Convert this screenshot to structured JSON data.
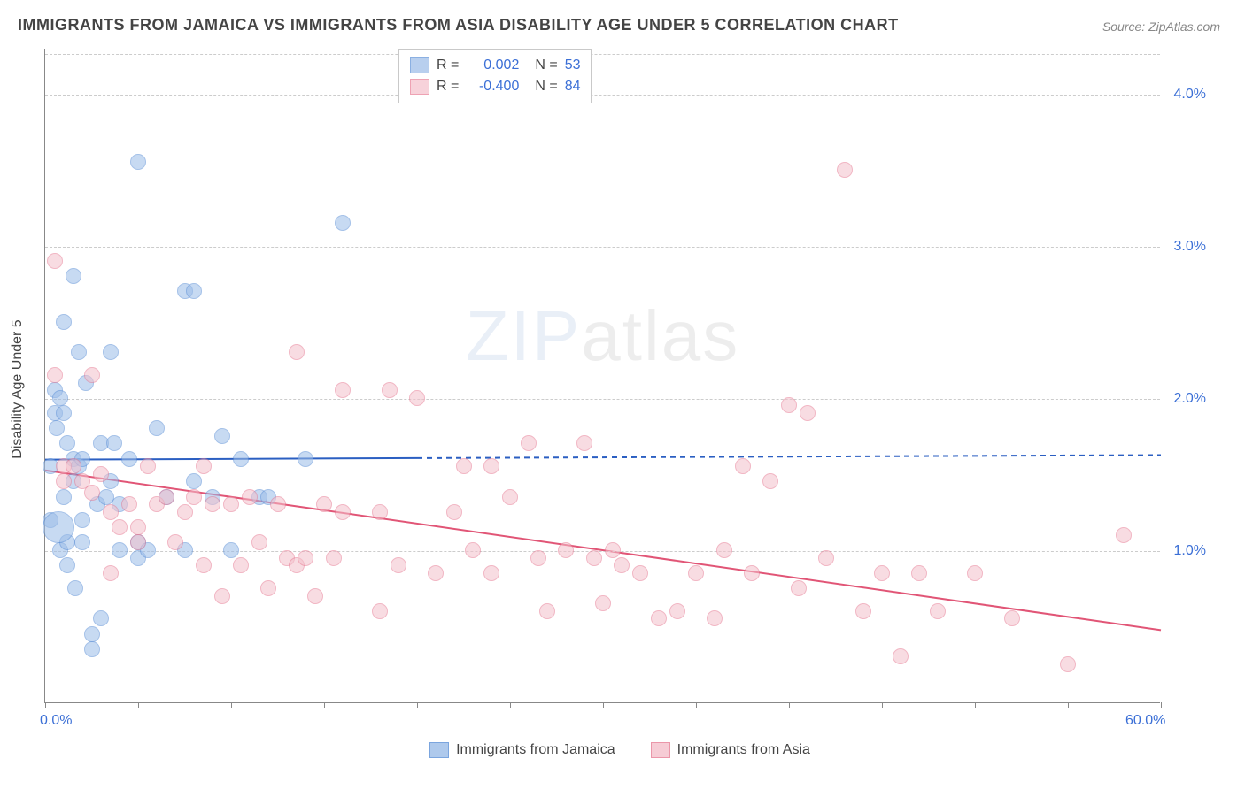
{
  "title": "IMMIGRANTS FROM JAMAICA VS IMMIGRANTS FROM ASIA DISABILITY AGE UNDER 5 CORRELATION CHART",
  "source": "Source: ZipAtlas.com",
  "chart": {
    "type": "scatter",
    "ylabel": "Disability Age Under 5",
    "xlim": [
      0,
      60
    ],
    "ylim": [
      0,
      4.3
    ],
    "xtick_positions": [
      0,
      5,
      10,
      15,
      20,
      25,
      30,
      35,
      40,
      45,
      50,
      55,
      60
    ],
    "xtick_labels": {
      "0": "0.0%",
      "60": "60.0%"
    },
    "ytick_positions": [
      1.0,
      2.0,
      3.0,
      4.0
    ],
    "ytick_labels": [
      "1.0%",
      "2.0%",
      "3.0%",
      "4.0%"
    ],
    "grid_color": "#d5d5d5",
    "background_color": "#ffffff",
    "point_radius": 9,
    "point_stroke_width": 1.5,
    "series": [
      {
        "name": "Immigrants from Jamaica",
        "fill": "#9bbce8",
        "stroke": "#5b8fd6",
        "fill_opacity": 0.55,
        "R": "0.002",
        "N": "53",
        "regression": {
          "x1": 0,
          "y1": 1.6,
          "x2": 20,
          "y2": 1.61,
          "color": "#2b5fc2",
          "width": 2
        },
        "extension": {
          "x1": 20,
          "y1": 1.61,
          "x2": 60,
          "y2": 1.63,
          "color": "#2b5fc2",
          "dash": "6,5",
          "width": 2
        },
        "points": [
          [
            0.3,
            1.55
          ],
          [
            0.3,
            1.2
          ],
          [
            0.5,
            2.05
          ],
          [
            0.5,
            1.9
          ],
          [
            0.6,
            1.8
          ],
          [
            0.8,
            1.0
          ],
          [
            0.8,
            2.0
          ],
          [
            1.0,
            1.9
          ],
          [
            1.0,
            2.5
          ],
          [
            1.0,
            1.35
          ],
          [
            1.2,
            0.9
          ],
          [
            1.2,
            1.05
          ],
          [
            1.2,
            1.7
          ],
          [
            1.5,
            1.45
          ],
          [
            1.5,
            1.6
          ],
          [
            1.5,
            2.8
          ],
          [
            1.6,
            0.75
          ],
          [
            1.8,
            2.3
          ],
          [
            1.8,
            1.55
          ],
          [
            2.0,
            1.05
          ],
          [
            2.0,
            1.6
          ],
          [
            2.0,
            1.2
          ],
          [
            2.2,
            2.1
          ],
          [
            2.5,
            0.35
          ],
          [
            2.5,
            0.45
          ],
          [
            2.8,
            1.3
          ],
          [
            3.0,
            0.55
          ],
          [
            3.0,
            1.7
          ],
          [
            3.3,
            1.35
          ],
          [
            3.5,
            2.3
          ],
          [
            3.5,
            1.45
          ],
          [
            3.7,
            1.7
          ],
          [
            4.0,
            1.3
          ],
          [
            4.0,
            1.0
          ],
          [
            4.5,
            1.6
          ],
          [
            5.0,
            3.55
          ],
          [
            5.0,
            1.05
          ],
          [
            5.0,
            0.95
          ],
          [
            5.5,
            1.0
          ],
          [
            6.0,
            1.8
          ],
          [
            6.5,
            1.35
          ],
          [
            7.5,
            2.7
          ],
          [
            7.5,
            1.0
          ],
          [
            8.0,
            2.7
          ],
          [
            8.0,
            1.45
          ],
          [
            9.0,
            1.35
          ],
          [
            9.5,
            1.75
          ],
          [
            10.0,
            1.0
          ],
          [
            10.5,
            1.6
          ],
          [
            11.5,
            1.35
          ],
          [
            12.0,
            1.35
          ],
          [
            14.0,
            1.6
          ],
          [
            16.0,
            3.15
          ]
        ],
        "big_point": {
          "x": 0.7,
          "y": 1.15,
          "r": 18
        }
      },
      {
        "name": "Immigrants from Asia",
        "fill": "#f4c0cb",
        "stroke": "#e77c94",
        "fill_opacity": 0.55,
        "R": "-0.400",
        "N": "84",
        "regression": {
          "x1": 0,
          "y1": 1.53,
          "x2": 60,
          "y2": 0.48,
          "color": "#e15576",
          "width": 2
        },
        "points": [
          [
            0.5,
            2.15
          ],
          [
            0.5,
            2.9
          ],
          [
            1.0,
            1.55
          ],
          [
            1.0,
            1.45
          ],
          [
            1.5,
            1.55
          ],
          [
            2.0,
            1.45
          ],
          [
            2.5,
            2.15
          ],
          [
            2.5,
            1.38
          ],
          [
            3.0,
            1.5
          ],
          [
            3.5,
            1.25
          ],
          [
            3.5,
            0.85
          ],
          [
            4.0,
            1.15
          ],
          [
            4.5,
            1.3
          ],
          [
            5.0,
            1.15
          ],
          [
            5.0,
            1.05
          ],
          [
            5.5,
            1.55
          ],
          [
            6.0,
            1.3
          ],
          [
            6.5,
            1.35
          ],
          [
            7.0,
            1.05
          ],
          [
            7.5,
            1.25
          ],
          [
            8.0,
            1.35
          ],
          [
            8.5,
            0.9
          ],
          [
            8.5,
            1.55
          ],
          [
            9.0,
            1.3
          ],
          [
            9.5,
            0.7
          ],
          [
            10.0,
            1.3
          ],
          [
            10.5,
            0.9
          ],
          [
            11.0,
            1.35
          ],
          [
            11.5,
            1.05
          ],
          [
            12.0,
            0.75
          ],
          [
            12.5,
            1.3
          ],
          [
            13.0,
            0.95
          ],
          [
            13.5,
            2.3
          ],
          [
            13.5,
            0.9
          ],
          [
            14.0,
            0.95
          ],
          [
            14.5,
            0.7
          ],
          [
            15.0,
            1.3
          ],
          [
            15.5,
            0.95
          ],
          [
            16.0,
            2.05
          ],
          [
            16.0,
            1.25
          ],
          [
            18.0,
            1.25
          ],
          [
            18.0,
            0.6
          ],
          [
            18.5,
            2.05
          ],
          [
            19.0,
            0.9
          ],
          [
            20.0,
            2.0
          ],
          [
            21.0,
            0.85
          ],
          [
            22.0,
            1.25
          ],
          [
            22.5,
            1.55
          ],
          [
            23.0,
            1.0
          ],
          [
            24.0,
            0.85
          ],
          [
            24.0,
            1.55
          ],
          [
            25.0,
            1.35
          ],
          [
            26.0,
            1.7
          ],
          [
            26.5,
            0.95
          ],
          [
            27.0,
            0.6
          ],
          [
            28.0,
            1.0
          ],
          [
            29.0,
            1.7
          ],
          [
            29.5,
            0.95
          ],
          [
            30.0,
            0.65
          ],
          [
            30.5,
            1.0
          ],
          [
            31.0,
            0.9
          ],
          [
            32.0,
            0.85
          ],
          [
            33.0,
            0.55
          ],
          [
            34.0,
            0.6
          ],
          [
            35.0,
            0.85
          ],
          [
            36.0,
            0.55
          ],
          [
            36.5,
            1.0
          ],
          [
            37.5,
            1.55
          ],
          [
            38.0,
            0.85
          ],
          [
            39.0,
            1.45
          ],
          [
            40.0,
            1.95
          ],
          [
            40.5,
            0.75
          ],
          [
            41.0,
            1.9
          ],
          [
            42.0,
            0.95
          ],
          [
            43.0,
            3.5
          ],
          [
            44.0,
            0.6
          ],
          [
            45.0,
            0.85
          ],
          [
            46.0,
            0.3
          ],
          [
            47.0,
            0.85
          ],
          [
            48.0,
            0.6
          ],
          [
            50.0,
            0.85
          ],
          [
            52.0,
            0.55
          ],
          [
            55.0,
            0.25
          ],
          [
            58.0,
            1.1
          ]
        ]
      }
    ],
    "watermark": {
      "bold": "ZIP",
      "light": "atlas"
    },
    "stats_labels": {
      "R": "R =",
      "N": "N ="
    },
    "legend_title": ""
  }
}
